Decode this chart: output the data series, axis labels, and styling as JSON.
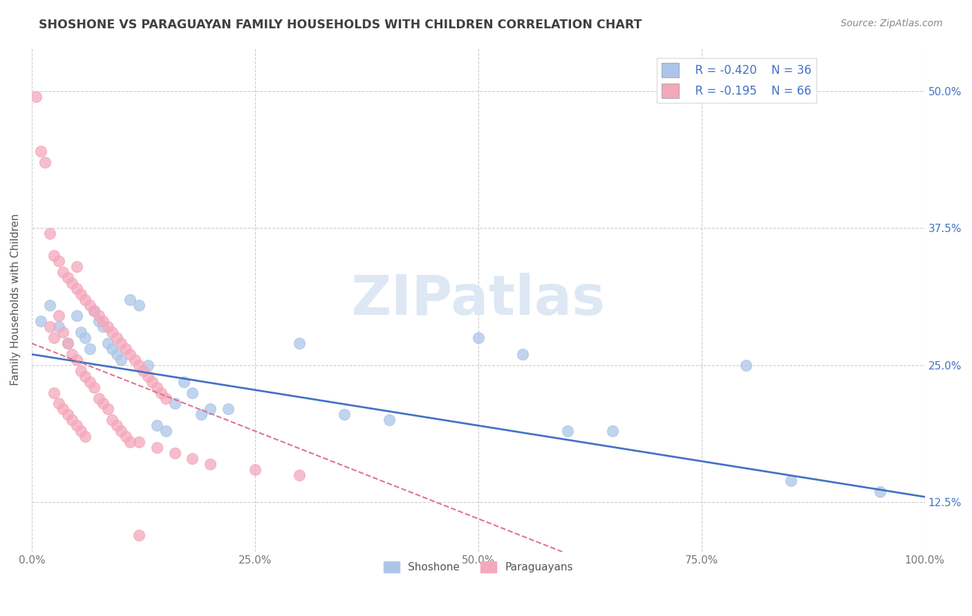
{
  "title": "SHOSHONE VS PARAGUAYAN FAMILY HOUSEHOLDS WITH CHILDREN CORRELATION CHART",
  "source": "Source: ZipAtlas.com",
  "ylabel": "Family Households with Children",
  "xlabel_vals": [
    0.0,
    25.0,
    50.0,
    75.0,
    100.0
  ],
  "ylabel_vals": [
    12.5,
    25.0,
    37.5,
    50.0
  ],
  "xlim": [
    0.0,
    100.0
  ],
  "ylim": [
    8.0,
    54.0
  ],
  "legend_r1": "R = -0.420",
  "legend_n1": "N = 36",
  "legend_r2": "R = -0.195",
  "legend_n2": "N = 66",
  "watermark": "ZIPatlas",
  "shoshone_color": "#adc6e8",
  "paraguayan_color": "#f4a8bb",
  "shoshone_line_color": "#4472c4",
  "paraguayan_line_color": "#e07090",
  "shoshone_scatter": [
    [
      1.0,
      29.0
    ],
    [
      2.0,
      30.5
    ],
    [
      3.0,
      28.5
    ],
    [
      4.0,
      27.0
    ],
    [
      5.0,
      29.5
    ],
    [
      5.5,
      28.0
    ],
    [
      6.0,
      27.5
    ],
    [
      6.5,
      26.5
    ],
    [
      7.0,
      30.0
    ],
    [
      7.5,
      29.0
    ],
    [
      8.0,
      28.5
    ],
    [
      8.5,
      27.0
    ],
    [
      9.0,
      26.5
    ],
    [
      9.5,
      26.0
    ],
    [
      10.0,
      25.5
    ],
    [
      11.0,
      31.0
    ],
    [
      12.0,
      30.5
    ],
    [
      13.0,
      25.0
    ],
    [
      14.0,
      19.5
    ],
    [
      15.0,
      19.0
    ],
    [
      16.0,
      21.5
    ],
    [
      17.0,
      23.5
    ],
    [
      18.0,
      22.5
    ],
    [
      19.0,
      20.5
    ],
    [
      20.0,
      21.0
    ],
    [
      22.0,
      21.0
    ],
    [
      30.0,
      27.0
    ],
    [
      35.0,
      20.5
    ],
    [
      40.0,
      20.0
    ],
    [
      50.0,
      27.5
    ],
    [
      55.0,
      26.0
    ],
    [
      60.0,
      19.0
    ],
    [
      65.0,
      19.0
    ],
    [
      80.0,
      25.0
    ],
    [
      85.0,
      14.5
    ],
    [
      95.0,
      13.5
    ]
  ],
  "paraguayan_scatter": [
    [
      0.5,
      49.5
    ],
    [
      1.0,
      44.5
    ],
    [
      1.5,
      43.5
    ],
    [
      2.0,
      37.0
    ],
    [
      2.5,
      35.0
    ],
    [
      3.0,
      34.5
    ],
    [
      3.5,
      33.5
    ],
    [
      4.0,
      33.0
    ],
    [
      4.5,
      32.5
    ],
    [
      5.0,
      32.0
    ],
    [
      5.0,
      34.0
    ],
    [
      5.5,
      31.5
    ],
    [
      6.0,
      31.0
    ],
    [
      6.5,
      30.5
    ],
    [
      7.0,
      30.0
    ],
    [
      7.5,
      29.5
    ],
    [
      8.0,
      29.0
    ],
    [
      8.5,
      28.5
    ],
    [
      9.0,
      28.0
    ],
    [
      9.5,
      27.5
    ],
    [
      10.0,
      27.0
    ],
    [
      10.5,
      26.5
    ],
    [
      11.0,
      26.0
    ],
    [
      11.5,
      25.5
    ],
    [
      12.0,
      25.0
    ],
    [
      12.5,
      24.5
    ],
    [
      13.0,
      24.0
    ],
    [
      13.5,
      23.5
    ],
    [
      14.0,
      23.0
    ],
    [
      14.5,
      22.5
    ],
    [
      15.0,
      22.0
    ],
    [
      2.0,
      28.5
    ],
    [
      2.5,
      27.5
    ],
    [
      3.0,
      29.5
    ],
    [
      3.5,
      28.0
    ],
    [
      4.0,
      27.0
    ],
    [
      4.5,
      26.0
    ],
    [
      5.0,
      25.5
    ],
    [
      5.5,
      24.5
    ],
    [
      6.0,
      24.0
    ],
    [
      6.5,
      23.5
    ],
    [
      7.0,
      23.0
    ],
    [
      7.5,
      22.0
    ],
    [
      8.0,
      21.5
    ],
    [
      8.5,
      21.0
    ],
    [
      9.0,
      20.0
    ],
    [
      9.5,
      19.5
    ],
    [
      10.0,
      19.0
    ],
    [
      10.5,
      18.5
    ],
    [
      11.0,
      18.0
    ],
    [
      2.5,
      22.5
    ],
    [
      3.0,
      21.5
    ],
    [
      3.5,
      21.0
    ],
    [
      4.0,
      20.5
    ],
    [
      4.5,
      20.0
    ],
    [
      5.0,
      19.5
    ],
    [
      5.5,
      19.0
    ],
    [
      6.0,
      18.5
    ],
    [
      12.0,
      18.0
    ],
    [
      14.0,
      17.5
    ],
    [
      16.0,
      17.0
    ],
    [
      18.0,
      16.5
    ],
    [
      20.0,
      16.0
    ],
    [
      25.0,
      15.5
    ],
    [
      30.0,
      15.0
    ],
    [
      12.0,
      9.5
    ]
  ]
}
